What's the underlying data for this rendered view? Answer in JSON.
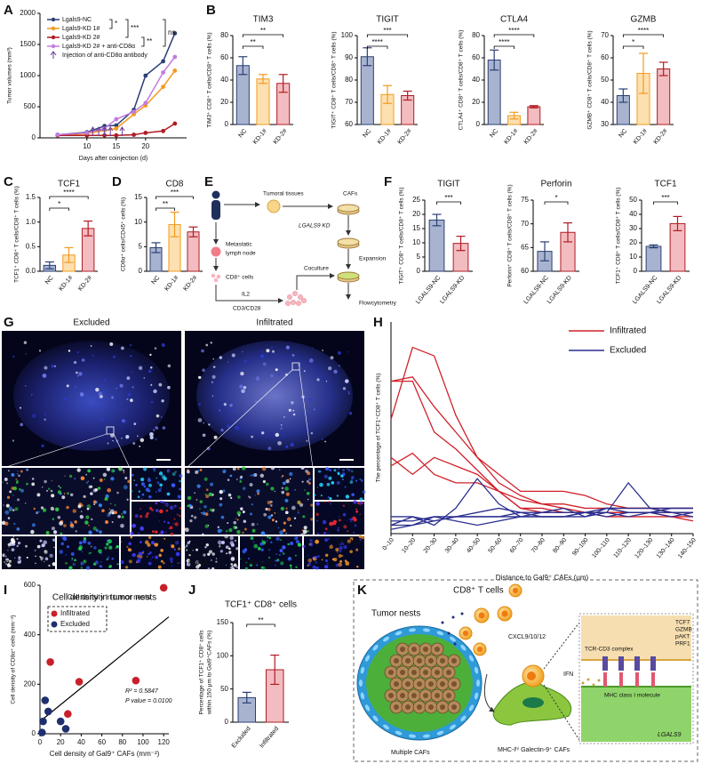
{
  "panel_labels": [
    "A",
    "B",
    "C",
    "D",
    "E",
    "F",
    "G",
    "H",
    "I",
    "J",
    "K"
  ],
  "chart_data": [
    {
      "type": "line",
      "ylabel": "Tumor volumes (mm³)",
      "xlabel": "Days after coinjection (d)",
      "x": [
        5,
        10,
        13,
        15,
        18,
        20,
        23,
        25
      ],
      "xlim": [
        2,
        27
      ],
      "xticks": [
        10,
        15,
        20
      ],
      "ylim": [
        0,
        2000
      ],
      "yticks": [
        0,
        500,
        1000,
        1500,
        2000
      ],
      "series": [
        {
          "name": "Lgals9-NC",
          "color": "#2b3f75",
          "values": [
            50,
            90,
            190,
            200,
            450,
            1000,
            1230,
            1680
          ]
        },
        {
          "name": "Lgals9-KD 1#",
          "color": "#f39a1e",
          "values": [
            45,
            70,
            120,
            150,
            380,
            520,
            820,
            1080
          ]
        },
        {
          "name": "Lgals9-KD 2#",
          "color": "#b01c24",
          "values": [
            40,
            40,
            40,
            40,
            50,
            80,
            110,
            230
          ]
        },
        {
          "name": "Lgals9-KD 2# + anti-CD8α",
          "color": "#c27be0",
          "values": [
            50,
            80,
            150,
            300,
            420,
            560,
            1050,
            1300
          ]
        }
      ],
      "injection_label": "Injection of anti-CD8α antibody",
      "injection_color": "#6a3d9a",
      "injections": [
        11,
        12,
        13,
        14,
        16
      ],
      "annotations": [
        "*",
        "***",
        "**",
        "ns"
      ]
    },
    {
      "type": "bar",
      "title": "TIM3",
      "ylabel": "TIM3⁺ CD8⁺ T cells/CD8⁺ T cells (%)",
      "categories": [
        "NC",
        "KD-1#",
        "KD-2#"
      ],
      "values": [
        53,
        41,
        37
      ],
      "errors": [
        8,
        4,
        8
      ],
      "ylim": [
        0,
        80
      ],
      "yticks": [
        0,
        20,
        40,
        60,
        80
      ],
      "edge_colors": [
        "#2b3f75",
        "#f39a1e",
        "#b01c24"
      ],
      "fill_colors": [
        "#a8b4cf",
        "#fde0b0",
        "#f2bcc0"
      ],
      "annotations": [
        "**",
        "**"
      ]
    },
    {
      "type": "bar",
      "title": "TIGIT",
      "ylabel": "TIGIT⁺ CD8⁺ T cells/CD8⁺ T cells (%)",
      "categories": [
        "NC",
        "KD-1#",
        "KD-2#"
      ],
      "values": [
        90.5,
        73.5,
        73
      ],
      "errors": [
        4,
        4,
        2
      ],
      "ylim": [
        60,
        100
      ],
      "yticks": [
        60,
        70,
        80,
        90,
        100
      ],
      "edge_colors": [
        "#2b3f75",
        "#f39a1e",
        "#b01c24"
      ],
      "fill_colors": [
        "#a8b4cf",
        "#fde0b0",
        "#f2bcc0"
      ],
      "annotations": [
        "****",
        "***"
      ]
    },
    {
      "type": "bar",
      "title": "CTLA4",
      "ylabel": "CTLA4⁺ CD8⁺ T cells/CD8⁺ T cells (%)",
      "categories": [
        "NC",
        "KD-1#",
        "KD-2#"
      ],
      "values": [
        58,
        8,
        16
      ],
      "errors": [
        9,
        3,
        1
      ],
      "ylim": [
        0,
        80
      ],
      "yticks": [
        0,
        20,
        40,
        60,
        80
      ],
      "edge_colors": [
        "#2b3f75",
        "#f39a1e",
        "#b01c24"
      ],
      "fill_colors": [
        "#a8b4cf",
        "#fde0b0",
        "#f2bcc0"
      ],
      "annotations": [
        "****",
        "****"
      ]
    },
    {
      "type": "bar",
      "title": "GZMB",
      "ylabel": "GZMB⁺ CD8⁺ T cells/CD8⁺ T cells (%)",
      "categories": [
        "NC",
        "KD-1#",
        "KD-2#"
      ],
      "values": [
        43,
        53,
        55
      ],
      "errors": [
        3,
        9,
        3
      ],
      "ylim": [
        30,
        70
      ],
      "yticks": [
        30,
        40,
        50,
        60,
        70
      ],
      "edge_colors": [
        "#2b3f75",
        "#f39a1e",
        "#b01c24"
      ],
      "fill_colors": [
        "#a8b4cf",
        "#fde0b0",
        "#f2bcc0"
      ],
      "annotations": [
        "*",
        "****"
      ]
    },
    {
      "type": "bar",
      "title": "TCF1",
      "ylabel": "TCF1⁺ CD8⁺ T cells/CD8⁺ T cells (%)",
      "categories": [
        "NC",
        "KD-1#",
        "KD-2#"
      ],
      "values": [
        0.12,
        0.33,
        0.87
      ],
      "errors": [
        0.07,
        0.15,
        0.15
      ],
      "ylim": [
        0,
        1.5
      ],
      "yticks": [
        {
          "value": 0,
          "label": "0.0"
        },
        0.5,
        {
          "value": 1,
          "label": "1.0"
        },
        1.5
      ],
      "edge_colors": [
        "#2b3f75",
        "#f39a1e",
        "#b01c24"
      ],
      "fill_colors": [
        "#a8b4cf",
        "#fde0b0",
        "#f2bcc0"
      ],
      "annotations": [
        "*",
        "****"
      ]
    },
    {
      "type": "bar",
      "title": "CD8",
      "ylabel": "CD8α⁺ cells/CD45⁺ cells (%)",
      "categories": [
        "NC",
        "KD-1#",
        "KD-2#"
      ],
      "values": [
        4.8,
        9.5,
        8
      ],
      "errors": [
        1,
        2.5,
        1
      ],
      "ylim": [
        0,
        15
      ],
      "yticks": [
        0,
        5,
        10,
        15
      ],
      "edge_colors": [
        "#2b3f75",
        "#f39a1e",
        "#b01c24"
      ],
      "fill_colors": [
        "#a8b4cf",
        "#fde0b0",
        "#f2bcc0"
      ],
      "annotations": [
        "**",
        "***"
      ]
    },
    {
      "type": "bar",
      "title": "TIGIT",
      "ylabel": "TIGIT⁺ CD8⁺ T cells/CD8⁺ T cells (%)",
      "categories": [
        "LGALS9-NC",
        "LGALS9-KD"
      ],
      "values": [
        18,
        9.8
      ],
      "errors": [
        2,
        2.5
      ],
      "ylim": [
        0,
        25
      ],
      "yticks": [
        0,
        5,
        10,
        15,
        20,
        25
      ],
      "edge_colors": [
        "#2b3f75",
        "#b01c24"
      ],
      "fill_colors": [
        "#a8b4cf",
        "#f2bcc0"
      ],
      "annotations": [
        "***"
      ]
    },
    {
      "type": "bar",
      "title": "Perforin",
      "ylabel": "Perforin⁺ CD8⁺ T cells/CD8⁺ T cells (%)",
      "categories": [
        "LGALS9-NC",
        "LGALS9-KD"
      ],
      "values": [
        64.2,
        68.2
      ],
      "errors": [
        2,
        2
      ],
      "ylim": [
        60,
        75
      ],
      "yticks": [
        60,
        65,
        70,
        75
      ],
      "edge_colors": [
        "#2b3f75",
        "#b01c24"
      ],
      "fill_colors": [
        "#a8b4cf",
        "#f2bcc0"
      ],
      "annotations": [
        "*"
      ]
    },
    {
      "type": "bar",
      "title": "TCF1",
      "ylabel": "TCF1⁺ CD8⁺ T cells/CD8⁺ T cells (%)",
      "categories": [
        "LGALS9-NC",
        "LGALS9-KD"
      ],
      "values": [
        17.5,
        33.5
      ],
      "errors": [
        1,
        5
      ],
      "ylim": [
        0,
        50
      ],
      "yticks": [
        0,
        10,
        20,
        30,
        40,
        50
      ],
      "edge_colors": [
        "#2b3f75",
        "#b01c24"
      ],
      "fill_colors": [
        "#a8b4cf",
        "#f2bcc0"
      ],
      "annotations": [
        "***"
      ]
    },
    {
      "type": "multiline",
      "ylabel": "The percentage of TCF1⁺CD8⁺ T cells (%)",
      "xlabel": "Distance to Gal9⁺ CAFs (μm)",
      "categories": [
        "0–10",
        "10–20",
        "20–30",
        "30–40",
        "40–50",
        "50–60",
        "60–70",
        "70–80",
        "80–90",
        "90–100",
        "100–110",
        "110–120",
        "120–130",
        "130–140",
        "140–150"
      ],
      "ylim": [
        0,
        25
      ],
      "groups": [
        {
          "name": "Infiltrated",
          "color": "#d0202a",
          "lines": [
            [
              13.5,
              22,
              21,
              14,
              9,
              6,
              4.5,
              3.5,
              3,
              2.5,
              2,
              2,
              2,
              2,
              1.5
            ],
            [
              18,
              18.5,
              15,
              12,
              9,
              7,
              5,
              5,
              5,
              4.5,
              3.5,
              3,
              3,
              3,
              3
            ],
            [
              9,
              7,
              9,
              8,
              7,
              5,
              4,
              3.5,
              3.5,
              3,
              3,
              3,
              3,
              2.5,
              2.5
            ],
            [
              8,
              9.5,
              7,
              6,
              6,
              5,
              3,
              2.5,
              2.5,
              2.5,
              2.5,
              2.5,
              2.5,
              2,
              2
            ],
            [
              18,
              18,
              12,
              10,
              7.5,
              5,
              3,
              3,
              2.5,
              2.5,
              2.5,
              2.5,
              2.5,
              2.5,
              2.5
            ]
          ]
        },
        {
          "name": "Excluded",
          "color": "#2a2f8f",
          "lines": [
            [
              1,
              2,
              1.5,
              2,
              2.5,
              3,
              2.5,
              2.5,
              3,
              2,
              2.5,
              6,
              3,
              3,
              3
            ],
            [
              2,
              2,
              1,
              3,
              6.5,
              3.5,
              2,
              2,
              2,
              2,
              3,
              2.5,
              2.5,
              2.5,
              2
            ],
            [
              1,
              1,
              1.5,
              2,
              2,
              2,
              2.5,
              2,
              2,
              2.5,
              2.5,
              2,
              2.5,
              3,
              3
            ],
            [
              0.5,
              1,
              2,
              2,
              2,
              2,
              2,
              2.5,
              2.5,
              2.5,
              3,
              3,
              3,
              2.5,
              2.5
            ],
            [
              1.5,
              1.5,
              2,
              1.5,
              1,
              1.5,
              2,
              2,
              2,
              2.5,
              2,
              2.5,
              2.5,
              2,
              2.5
            ]
          ]
        }
      ]
    },
    {
      "type": "scatter",
      "title": "Cell density in tumor nests",
      "xlabel": "Cell density of Gal9⁺ CAFs  (mm⁻²)",
      "ylabel": "Cell density of CD8α⁺ cells  (mm⁻²)",
      "xlim": [
        0,
        125
      ],
      "xticks": [
        0,
        20,
        40,
        60,
        80,
        100,
        120
      ],
      "ylim": [
        0,
        600
      ],
      "yticks": [
        0,
        200,
        400,
        600
      ],
      "series": [
        {
          "name": "Infiltrated",
          "color": "#c8202a",
          "x": [
            10,
            38,
            93,
            120,
            27
          ],
          "values": [
            290,
            210,
            215,
            590,
            80
          ]
        },
        {
          "name": "Excluded",
          "color": "#1f2f6e",
          "x": [
            2,
            5,
            8,
            20,
            25,
            3
          ],
          "values": [
            5,
            135,
            90,
            50,
            20,
            50
          ]
        }
      ],
      "annotations": [
        "R² = 0.5847",
        "P value = 0.0100"
      ]
    },
    {
      "type": "bar",
      "title": "TCF1⁺ CD8⁺ cells",
      "ylabel": [
        "Percentage of TCF1⁺ CD8⁺ cells",
        "within 150 μm to Gal9⁺CAFs (%)"
      ],
      "categories": [
        "Excluded",
        "Infiltrated"
      ],
      "values": [
        37,
        79
      ],
      "errors": [
        8,
        22
      ],
      "ylim": [
        0,
        150
      ],
      "yticks": [
        0,
        50,
        100,
        150
      ],
      "edge_colors": [
        "#2b3f75",
        "#b01c24"
      ],
      "fill_colors": [
        "#a8b4cf",
        "#f2bcc0"
      ],
      "annotations": [
        "**"
      ]
    }
  ],
  "diagram_e": {
    "tumoral": "Tumoral tissues",
    "cafs": "CAFs",
    "lymph": [
      "Metastatic",
      "lymph node"
    ],
    "kd": "LGALS9 KD",
    "expansion": "Expansion",
    "cd8": "CD8⁺ cells",
    "coculture": "Coculture",
    "il2": "IL2",
    "cd3": "CD3/CD28",
    "flow": "Flowcytometry"
  },
  "images_g": {
    "titles": [
      "Excluded",
      "Infiltrated"
    ],
    "channels": [
      "CD8α",
      "TCF1",
      "PanCK",
      "Galectin-9",
      "COL1A1"
    ]
  },
  "diagram_k": {
    "tcells": "CD8⁺ T cells",
    "nests": "Tumor nests",
    "cxcl": "CXCL9/10/12",
    "ifn": "IFN",
    "cafs": "Multiple CAFs",
    "mhc_cafs": "MHC-Iʰⁱ Galectin-9⁺ CAFs",
    "gene": "LGALS9",
    "markers": [
      "TCF7",
      "GZMB",
      "pAKT",
      "PRF1"
    ],
    "tcr": "TCR-CD3 complex",
    "mhc": "MHC class I molecule"
  }
}
